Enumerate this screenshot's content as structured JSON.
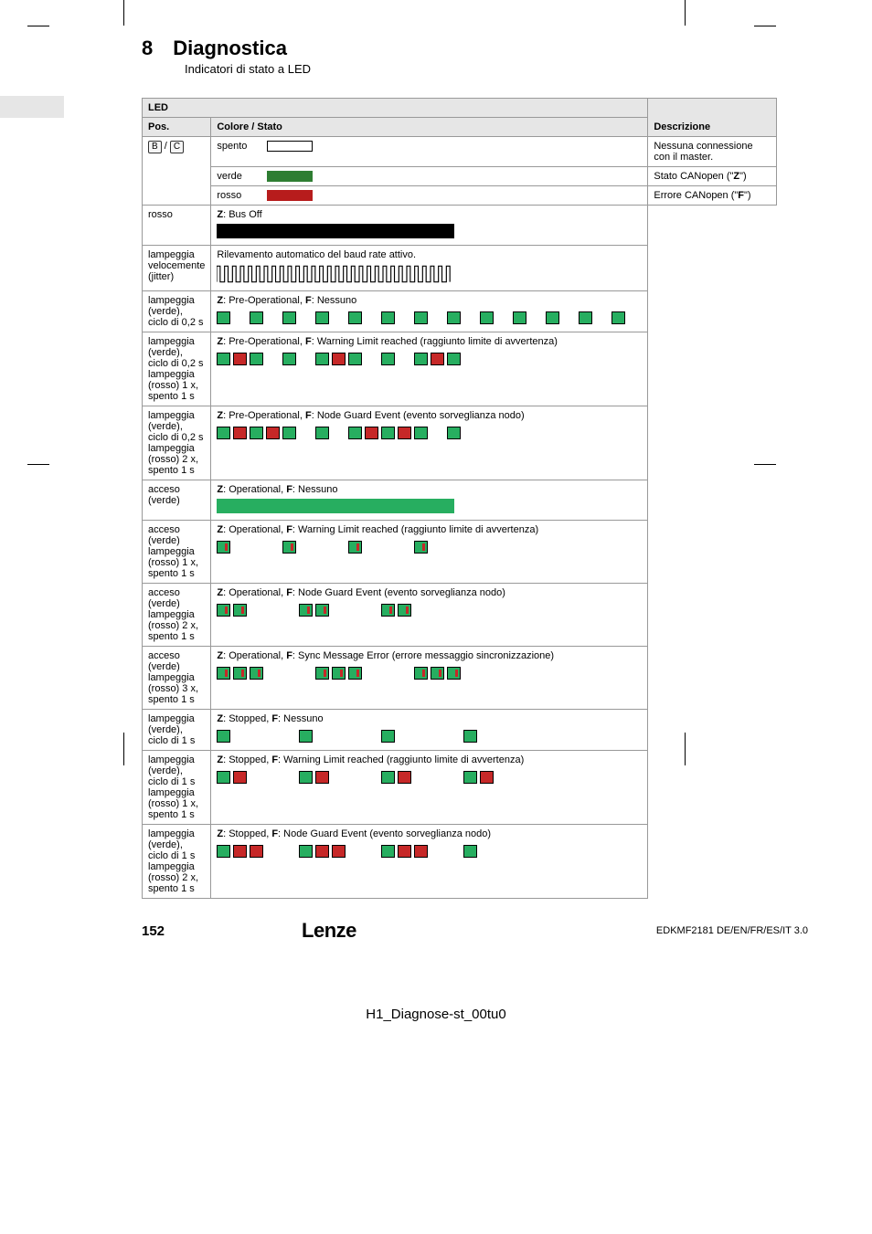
{
  "chapter_num": "8",
  "chapter_title": "Diagnostica",
  "subtitle": "Indicatori di stato a LED",
  "table": {
    "header_led": "LED",
    "header_pos": "Pos.",
    "header_color": "Colore / Stato",
    "header_desc": "Descrizione",
    "pos_value": "B / C",
    "rows": [
      {
        "color_label": "spento",
        "swatch": "#ffffff",
        "desc": "Nessuna connessione con il master."
      },
      {
        "color_label": "verde",
        "swatch": "#2e7d32",
        "desc": "Stato CANopen (\"Z\")"
      },
      {
        "color_label": "rosso",
        "swatch": "#b71c1c",
        "desc": "Errore CANopen (\"F\")"
      }
    ],
    "states": [
      {
        "left": "rosso",
        "desc_strong": "Z",
        "desc_rest": ": Bus Off",
        "pattern": {
          "type": "solid",
          "fill": "#000000"
        }
      },
      {
        "left": "lampeggia velocemente (jitter)",
        "desc_plain": "Rilevamento automatico del baud rate attivo.",
        "pattern": {
          "type": "jitter",
          "stroke": "#000000"
        }
      },
      {
        "left": "lampeggia (verde), ciclo di 0,2 s",
        "desc_strong": "Z",
        "desc_rest": ": Pre-Operational, F: Nessuno",
        "pattern": {
          "type": "boxes",
          "fill": "#27ae60",
          "count": 13,
          "on_off": "alt"
        }
      },
      {
        "left": "lampeggia (verde), ciclo di 0,2 s\nlampeggia (rosso) 1 x, spento 1 s",
        "desc_strong": "Z",
        "desc_rest": ": Pre-Operational, F: Warning Limit reached (raggiunto limite di avvertenza)",
        "pattern": {
          "type": "mix",
          "green": "#27ae60",
          "red": "#c62828",
          "seq": [
            "g",
            "r",
            "g",
            "",
            "g",
            "",
            "g",
            "r",
            "g",
            "",
            "g",
            "",
            "g",
            "r",
            "g"
          ]
        }
      },
      {
        "left": "lampeggia (verde), ciclo di 0,2 s\nlampeggia (rosso) 2 x, spento 1 s",
        "desc_strong": "Z",
        "desc_rest": ": Pre-Operational, F: Node Guard Event (evento sorveglianza nodo)",
        "pattern": {
          "type": "mix",
          "green": "#27ae60",
          "red": "#c62828",
          "seq": [
            "g",
            "r",
            "g",
            "r",
            "g",
            "",
            "g",
            "",
            "g",
            "r",
            "g",
            "r",
            "g",
            "",
            "g"
          ]
        }
      },
      {
        "left": "acceso (verde)",
        "desc_strong": "Z",
        "desc_rest": ": Operational, F: Nessuno",
        "pattern": {
          "type": "solid",
          "fill": "#27ae60"
        }
      },
      {
        "left": "acceso (verde)\nlampeggia (rosso) 1 x, spento 1 s",
        "desc_strong": "Z",
        "desc_rest": ": Operational, F: Warning Limit reached (raggiunto limite di avvertenza)",
        "pattern": {
          "type": "mix",
          "green": "#27ae60",
          "red": "#c62828",
          "seq": [
            "gr",
            "",
            "",
            "",
            "gr",
            "",
            "",
            "",
            "gr",
            "",
            "",
            "",
            "gr"
          ]
        }
      },
      {
        "left": "acceso (verde)\nlampeggia (rosso) 2 x, spento 1 s",
        "desc_strong": "Z",
        "desc_rest": ": Operational, F: Node Guard Event (evento sorveglianza nodo)",
        "pattern": {
          "type": "mix",
          "green": "#27ae60",
          "red": "#c62828",
          "seq": [
            "gr",
            "gr",
            "",
            "",
            "",
            "gr",
            "gr",
            "",
            "",
            "",
            "gr",
            "gr"
          ]
        }
      },
      {
        "left": "acceso (verde)\nlampeggia (rosso) 3 x, spento 1 s",
        "desc_strong": "Z",
        "desc_rest": ": Operational, F: Sync Message Error (errore messaggio sincronizzazione)",
        "pattern": {
          "type": "mix",
          "green": "#27ae60",
          "red": "#c62828",
          "seq": [
            "gr",
            "gr",
            "gr",
            "",
            "",
            "",
            "gr",
            "gr",
            "gr",
            "",
            "",
            "",
            "gr",
            "gr",
            "gr"
          ]
        }
      },
      {
        "left": "lampeggia (verde), ciclo di 1 s",
        "desc_strong": "Z",
        "desc_rest": ": Stopped, F: Nessuno",
        "pattern": {
          "type": "mix",
          "green": "#27ae60",
          "red": "#c62828",
          "seq": [
            "g",
            "",
            "",
            "",
            "",
            "g",
            "",
            "",
            "",
            "",
            "g",
            "",
            "",
            "",
            "",
            "g"
          ]
        }
      },
      {
        "left": "lampeggia (verde), ciclo di 1 s\nlampeggia (rosso) 1 x, spento 1 s",
        "desc_strong": "Z",
        "desc_rest": ": Stopped, F: Warning Limit reached (raggiunto limite di avvertenza)",
        "pattern": {
          "type": "mix",
          "green": "#27ae60",
          "red": "#c62828",
          "seq": [
            "g",
            "r",
            "",
            "",
            "",
            "g",
            "r",
            "",
            "",
            "",
            "g",
            "r",
            "",
            "",
            "",
            "g",
            "r"
          ]
        }
      },
      {
        "left": "lampeggia (verde), ciclo di 1 s\nlampeggia (rosso) 2 x, spento 1 s",
        "desc_strong": "Z",
        "desc_rest": ": Stopped, F: Node Guard Event (evento sorveglianza nodo)",
        "pattern": {
          "type": "mix",
          "green": "#27ae60",
          "red": "#c62828",
          "seq": [
            "g",
            "r",
            "r",
            "",
            "",
            "g",
            "r",
            "r",
            "",
            "",
            "g",
            "r",
            "r",
            "",
            "",
            "g"
          ]
        }
      }
    ]
  },
  "footer": {
    "page_num": "152",
    "brand": "Lenze",
    "doc_id": "EDKMF2181   DE/EN/FR/ES/IT   3.0"
  },
  "bottom_label": "H1_Diagnose-st_00tu0",
  "colors": {
    "green": "#27ae60",
    "red": "#c62828",
    "black": "#000000",
    "header_bg": "#e6e6e6"
  }
}
